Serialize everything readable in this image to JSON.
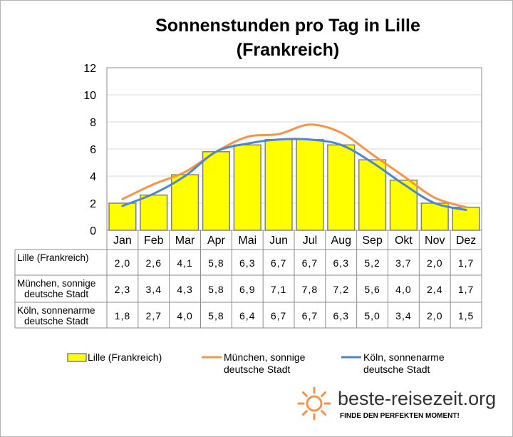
{
  "chart_data": {
    "type": "bar",
    "title_lines": [
      "Sonnenstunden pro Tag in Lille",
      "(Frankreich)"
    ],
    "categories": [
      "Jan",
      "Feb",
      "Mar",
      "Apr",
      "Mai",
      "Jun",
      "Jul",
      "Aug",
      "Sep",
      "Okt",
      "Nov",
      "Dez"
    ],
    "ylim": [
      0,
      12
    ],
    "yticks": [
      "0",
      "2",
      "4",
      "6",
      "8",
      "10",
      "12"
    ],
    "grid": true,
    "series": [
      {
        "name": "Lille (Frankreich)",
        "name_lines": [
          "Lille (Frankreich)"
        ],
        "kind": "bar",
        "color": "#ffff00",
        "values": [
          2.0,
          2.6,
          4.1,
          5.8,
          6.3,
          6.7,
          6.7,
          6.3,
          5.2,
          3.7,
          2.0,
          1.7
        ],
        "labels": [
          "2,0",
          "2,6",
          "4,1",
          "5,8",
          "6,3",
          "6,7",
          "6,7",
          "6,3",
          "5,2",
          "3,7",
          "2,0",
          "1,7"
        ]
      },
      {
        "name": "München, sonnige deutsche Stadt",
        "name_lines": [
          "München, sonnige",
          "deutsche Stadt"
        ],
        "kind": "line",
        "color": "#f7944a",
        "values": [
          2.3,
          3.4,
          4.3,
          5.8,
          6.9,
          7.1,
          7.8,
          7.2,
          5.6,
          4.0,
          2.4,
          1.7
        ],
        "labels": [
          "2,3",
          "3,4",
          "4,3",
          "5,8",
          "6,9",
          "7,1",
          "7,8",
          "7,2",
          "5,6",
          "4,0",
          "2,4",
          "1,7"
        ]
      },
      {
        "name": "Köln, sonnenarme deutsche Stadt",
        "name_lines": [
          "Köln, sonnenarme",
          "deutsche Stadt"
        ],
        "kind": "line",
        "color": "#4f86cf",
        "values": [
          1.8,
          2.7,
          4.0,
          5.8,
          6.4,
          6.7,
          6.7,
          6.3,
          5.0,
          3.4,
          2.0,
          1.5
        ],
        "labels": [
          "1,8",
          "2,7",
          "4,0",
          "5,8",
          "6,4",
          "6,7",
          "6,7",
          "6,3",
          "5,0",
          "3,4",
          "2,0",
          "1,5"
        ]
      }
    ],
    "legend_position": "bottom"
  },
  "branding": {
    "site": "beste-reisezeit.org",
    "tagline": "FINDE DEN PERFEKTEN MOMENT!",
    "sun_color": "#f7944a"
  }
}
